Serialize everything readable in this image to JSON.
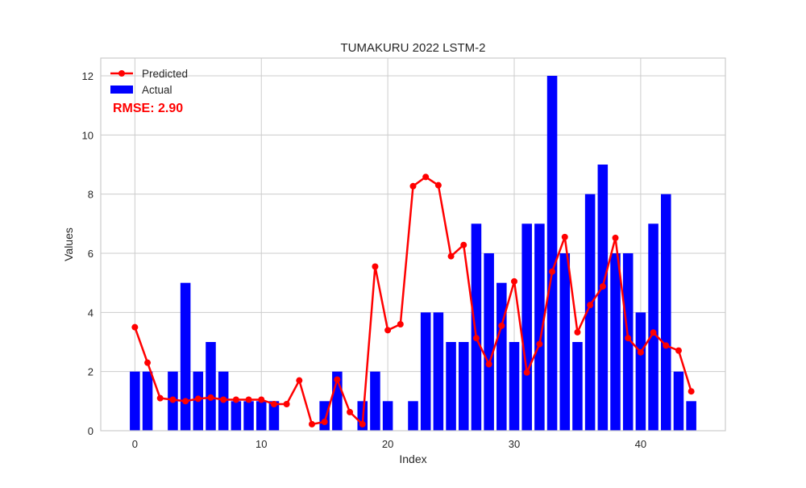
{
  "chart_data": {
    "type": "bar",
    "title": "TUMAKURU 2022 LSTM-2",
    "xlabel": "Index",
    "ylabel": "Values",
    "xlim": [
      -2.7,
      46.7
    ],
    "ylim": [
      0,
      12.6
    ],
    "x_ticks": [
      0,
      10,
      20,
      30,
      40
    ],
    "y_ticks": [
      0,
      2,
      4,
      6,
      8,
      10,
      12
    ],
    "grid": true,
    "legend_position": "upper-left",
    "annotation": "RMSE: 2.90",
    "annotation_color": "#ff0000",
    "x": [
      0,
      1,
      2,
      3,
      4,
      5,
      6,
      7,
      8,
      9,
      10,
      11,
      12,
      13,
      14,
      15,
      16,
      17,
      18,
      19,
      20,
      21,
      22,
      23,
      24,
      25,
      26,
      27,
      28,
      29,
      30,
      31,
      32,
      33,
      34,
      35,
      36,
      37,
      38,
      39,
      40,
      41,
      42,
      43,
      44
    ],
    "series": [
      {
        "name": "Actual",
        "kind": "bar",
        "color": "#0000ff",
        "values": [
          2,
          2,
          0,
          2,
          5,
          2,
          3,
          2,
          1,
          1,
          1,
          1,
          0,
          0,
          0,
          1,
          2,
          0,
          1,
          2,
          1,
          0,
          1,
          4,
          4,
          3,
          3,
          7,
          6,
          5,
          3,
          7,
          7,
          12,
          6,
          3,
          8,
          9,
          6,
          6,
          4,
          7,
          8,
          2,
          1
        ]
      },
      {
        "name": "Predicted",
        "kind": "line",
        "color": "#ff0000",
        "marker": "circle",
        "values": [
          3.5,
          2.3,
          1.1,
          1.05,
          1.0,
          1.08,
          1.12,
          1.05,
          1.05,
          1.05,
          1.05,
          0.9,
          0.9,
          1.7,
          0.22,
          0.3,
          1.73,
          0.63,
          0.22,
          5.55,
          3.4,
          3.6,
          8.27,
          8.58,
          8.3,
          5.9,
          6.28,
          3.13,
          2.25,
          3.55,
          5.05,
          1.97,
          2.93,
          5.38,
          6.55,
          3.33,
          4.25,
          4.88,
          6.52,
          3.13,
          2.65,
          3.32,
          2.88,
          2.71,
          1.33
        ]
      }
    ]
  }
}
